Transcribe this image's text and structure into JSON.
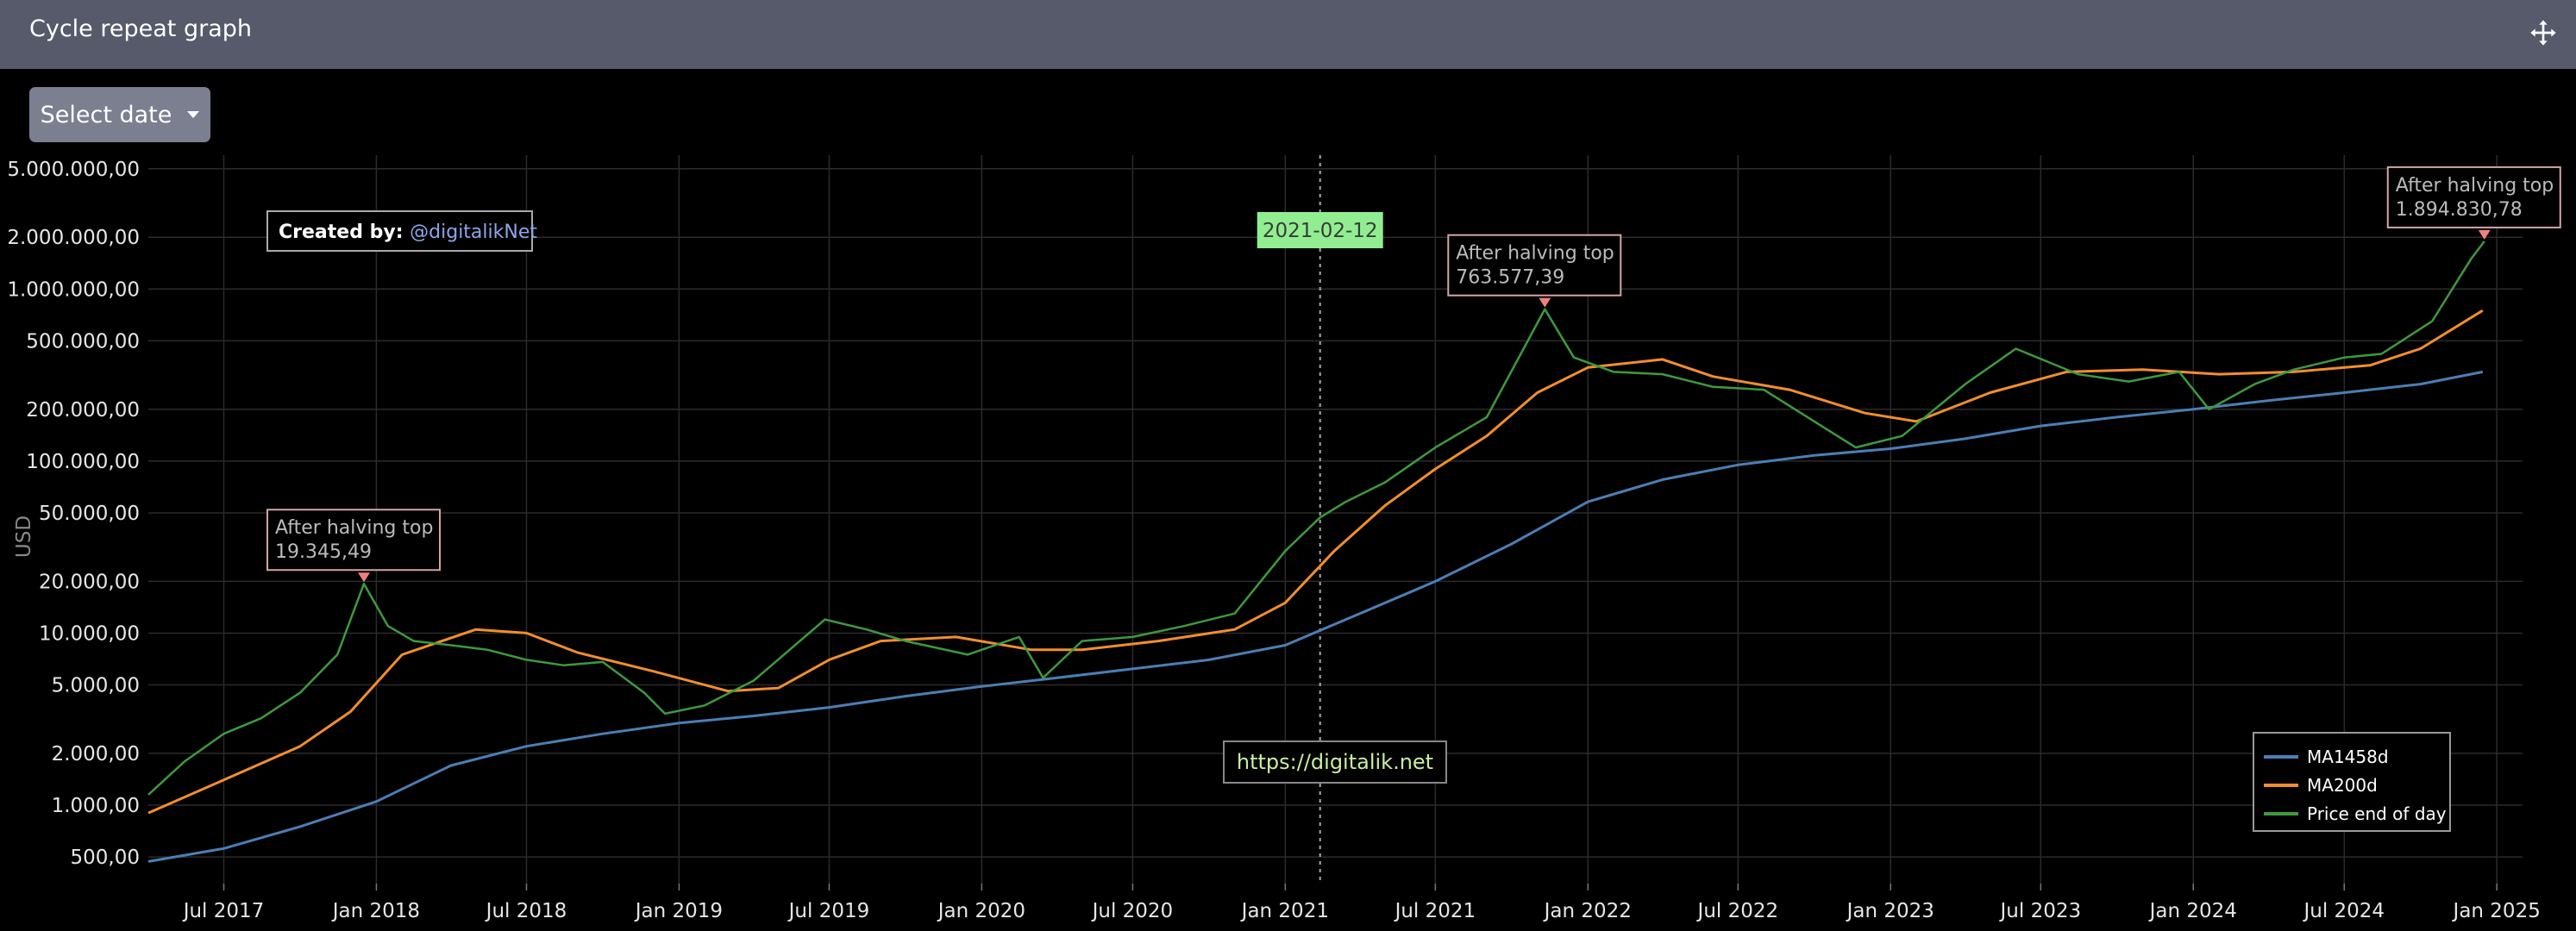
{
  "window": {
    "title": "Cycle repeat graph",
    "move_icon": "move-arrows-icon"
  },
  "controls": {
    "select_date_label": "Select date"
  },
  "chart_data": {
    "type": "line",
    "title": "",
    "xlabel": "",
    "ylabel": "USD",
    "y_scale": "log",
    "ylim": [
      350,
      6000000
    ],
    "xlim": [
      "2017-04-01",
      "2025-02-01"
    ],
    "x_ticks": [
      "2017-07-01",
      "2018-01-01",
      "2018-07-01",
      "2019-01-01",
      "2019-07-01",
      "2020-01-01",
      "2020-07-01",
      "2021-01-01",
      "2021-07-01",
      "2022-01-01",
      "2022-07-01",
      "2023-01-01",
      "2023-07-01",
      "2024-01-01",
      "2024-07-01",
      "2025-01-01"
    ],
    "x_tick_labels": [
      "Jul 2017",
      "Jan 2018",
      "Jul 2018",
      "Jan 2019",
      "Jul 2019",
      "Jan 2020",
      "Jul 2020",
      "Jan 2021",
      "Jul 2021",
      "Jan 2022",
      "Jul 2022",
      "Jan 2023",
      "Jul 2023",
      "Jan 2024",
      "Jul 2024",
      "Jan 2025"
    ],
    "y_ticks": [
      500,
      1000,
      2000,
      5000,
      10000,
      20000,
      50000,
      100000,
      200000,
      500000,
      1000000,
      2000000,
      5000000
    ],
    "y_tick_labels": [
      "500,00",
      "1.000,00",
      "2.000,00",
      "5.000,00",
      "10.000,00",
      "20.000,00",
      "50.000,00",
      "100.000,00",
      "200.000,00",
      "500.000,00",
      "1.000.000,00",
      "2.000.000,00",
      "5.000.000,00"
    ],
    "grid": true,
    "legend_position": "bottom-right",
    "series": [
      {
        "name": "MA1458d",
        "color": "#4a7fb5",
        "x": [
          "2017-04-01",
          "2017-07-01",
          "2017-10-01",
          "2018-01-01",
          "2018-04-01",
          "2018-07-01",
          "2018-10-01",
          "2019-01-01",
          "2019-04-01",
          "2019-07-01",
          "2019-10-01",
          "2020-01-01",
          "2020-04-01",
          "2020-07-01",
          "2020-10-01",
          "2021-01-01",
          "2021-04-01",
          "2021-07-01",
          "2021-10-01",
          "2022-01-01",
          "2022-04-01",
          "2022-07-01",
          "2022-10-01",
          "2023-01-01",
          "2023-04-01",
          "2023-07-01",
          "2023-10-01",
          "2024-01-01",
          "2024-04-01",
          "2024-07-01",
          "2024-10-01",
          "2024-12-15"
        ],
        "values": [
          470,
          560,
          750,
          1050,
          1700,
          2200,
          2600,
          3000,
          3300,
          3700,
          4300,
          4900,
          5500,
          6200,
          7000,
          8500,
          13000,
          20000,
          33000,
          58000,
          78000,
          95000,
          108000,
          118000,
          135000,
          160000,
          180000,
          200000,
          225000,
          250000,
          280000,
          330000
        ]
      },
      {
        "name": "MA200d",
        "color": "#f28e2b",
        "x": [
          "2017-04-01",
          "2017-07-01",
          "2017-10-01",
          "2017-12-01",
          "2018-02-01",
          "2018-05-01",
          "2018-07-01",
          "2018-09-01",
          "2018-12-01",
          "2019-03-01",
          "2019-05-01",
          "2019-07-01",
          "2019-09-01",
          "2019-12-01",
          "2020-03-01",
          "2020-05-01",
          "2020-08-01",
          "2020-11-01",
          "2021-01-01",
          "2021-03-01",
          "2021-05-01",
          "2021-07-01",
          "2021-09-01",
          "2021-11-01",
          "2022-01-01",
          "2022-04-01",
          "2022-06-01",
          "2022-09-01",
          "2022-12-01",
          "2023-02-01",
          "2023-05-01",
          "2023-08-01",
          "2023-11-01",
          "2024-02-01",
          "2024-05-01",
          "2024-08-01",
          "2024-10-01",
          "2024-12-15"
        ],
        "values": [
          900,
          1400,
          2200,
          3500,
          7500,
          10500,
          10000,
          7700,
          6000,
          4600,
          4800,
          7000,
          9000,
          9500,
          8000,
          8000,
          9000,
          10500,
          15000,
          30000,
          55000,
          90000,
          140000,
          250000,
          350000,
          390000,
          310000,
          260000,
          190000,
          170000,
          250000,
          330000,
          340000,
          320000,
          330000,
          360000,
          450000,
          750000
        ]
      },
      {
        "name": "Price end of day",
        "color": "#3d9a3d",
        "x": [
          "2017-04-01",
          "2017-05-15",
          "2017-07-01",
          "2017-08-15",
          "2017-10-01",
          "2017-11-15",
          "2017-12-17",
          "2018-01-15",
          "2018-02-15",
          "2018-04-01",
          "2018-05-15",
          "2018-07-01",
          "2018-08-15",
          "2018-10-01",
          "2018-11-20",
          "2018-12-15",
          "2019-02-01",
          "2019-04-01",
          "2019-06-26",
          "2019-08-15",
          "2019-10-01",
          "2019-12-15",
          "2020-02-15",
          "2020-03-15",
          "2020-05-01",
          "2020-07-01",
          "2020-09-01",
          "2020-11-01",
          "2021-01-01",
          "2021-02-12",
          "2021-03-15",
          "2021-05-01",
          "2021-07-01",
          "2021-09-01",
          "2021-11-10",
          "2021-12-15",
          "2022-02-01",
          "2022-04-01",
          "2022-06-01",
          "2022-08-01",
          "2022-10-01",
          "2022-11-20",
          "2023-01-15",
          "2023-04-01",
          "2023-06-01",
          "2023-08-15",
          "2023-10-15",
          "2023-12-15",
          "2024-01-20",
          "2024-03-15",
          "2024-05-01",
          "2024-07-01",
          "2024-08-15",
          "2024-10-15",
          "2024-12-01",
          "2024-12-17"
        ],
        "values": [
          1150,
          1800,
          2600,
          3200,
          4500,
          7500,
          19345,
          11000,
          9000,
          8500,
          8000,
          7000,
          6500,
          6800,
          4500,
          3400,
          3800,
          5300,
          12000,
          10500,
          9000,
          7500,
          9500,
          5500,
          9000,
          9500,
          11000,
          13000,
          30000,
          47000,
          58000,
          75000,
          120000,
          180000,
          763577,
          400000,
          330000,
          320000,
          270000,
          260000,
          170000,
          120000,
          140000,
          280000,
          450000,
          320000,
          290000,
          330000,
          200000,
          280000,
          340000,
          400000,
          420000,
          650000,
          1500000,
          1894830
        ]
      }
    ],
    "annotations": [
      {
        "x": "2017-12-17",
        "y": 19345,
        "title": "After halving top",
        "value": "19.345,49"
      },
      {
        "x": "2021-11-10",
        "y": 763577,
        "title": "After halving top",
        "value": "763.577,39"
      },
      {
        "x": "2024-12-17",
        "y": 1894830,
        "title": "After halving top",
        "value": "1.894.830,78"
      }
    ],
    "vertical_marker": {
      "x": "2021-02-12",
      "label": "2021-02-12"
    },
    "credit": {
      "prefix": "Created by:",
      "handle": "@digitalikNet"
    },
    "watermark": "https://digitalik.net",
    "legend": [
      "MA1458d",
      "MA200d",
      "Price end of day"
    ]
  }
}
